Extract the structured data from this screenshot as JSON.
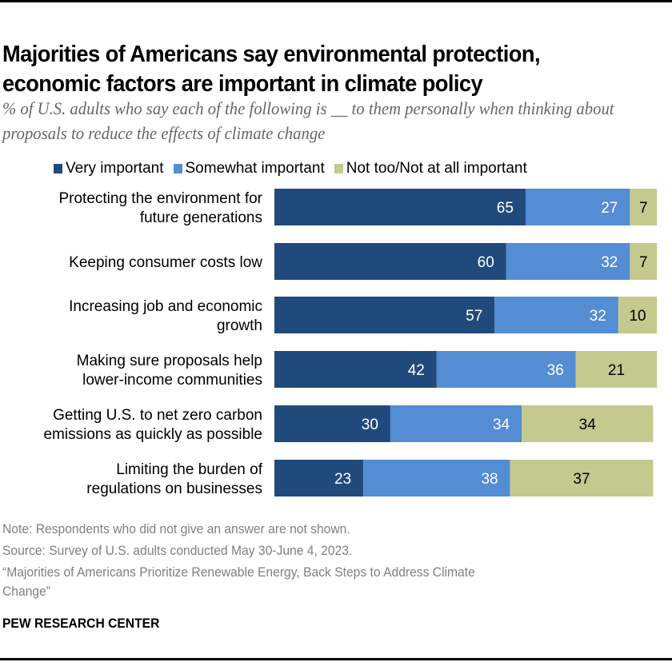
{
  "title": "Majorities of Americans say environmental protection, economic factors are important in climate policy",
  "subtitle": "% of U.S. adults who say each of the following is __ to them personally when thinking about proposals to reduce the effects of climate change",
  "chart_data": {
    "type": "bar",
    "orientation": "horizontal",
    "stacked": true,
    "title": "Majorities of Americans say environmental protection, economic factors are important in climate policy",
    "subtitle": "% of U.S. adults who say each of the following is __ to them personally when thinking about proposals to reduce the effects of climate change",
    "categories": [
      [
        "Protecting the environment for",
        "future generations"
      ],
      [
        "Keeping consumer costs low"
      ],
      [
        "Increasing job and economic",
        "growth"
      ],
      [
        "Making sure proposals help",
        "lower-income communities"
      ],
      [
        "Getting U.S. to net zero carbon",
        "emissions as quickly as possible"
      ],
      [
        "Limiting the burden of",
        "regulations on businesses"
      ]
    ],
    "series": [
      {
        "name": "Very important",
        "color": "#214a7c",
        "label_color": "#ffffff",
        "values": [
          65,
          60,
          57,
          42,
          30,
          23
        ]
      },
      {
        "name": "Somewhat important",
        "color": "#548dd4",
        "label_color": "#ffffff",
        "values": [
          27,
          32,
          32,
          36,
          34,
          38
        ]
      },
      {
        "name": "Not too/Not at all important",
        "color": "#c4c98e",
        "label_color": "#000000",
        "values": [
          7,
          7,
          10,
          21,
          34,
          37
        ]
      }
    ],
    "xlabel": "",
    "ylabel": "",
    "xlim": [
      0,
      100
    ],
    "grid": false,
    "legend_position": "top"
  },
  "footer": {
    "note": "Note: Respondents who did not give an answer are not shown.",
    "source": "Source: Survey of U.S. adults conducted May 30-June 4, 2023.",
    "report_line1": "“Majorities of Americans Prioritize Renewable Energy, Back Steps to Address Climate",
    "report_line2": "Change”",
    "brand": "PEW RESEARCH CENTER"
  }
}
